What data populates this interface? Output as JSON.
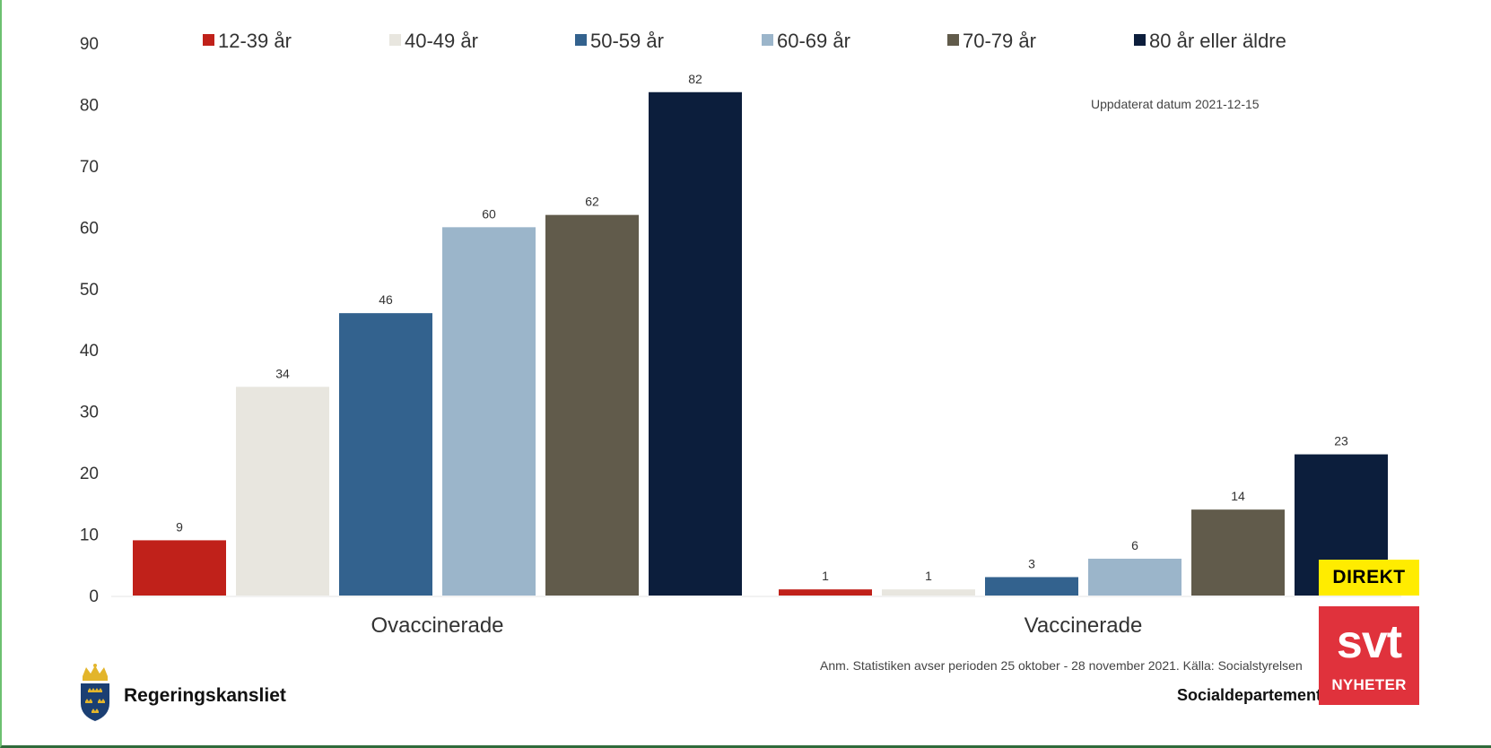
{
  "chart_data": {
    "type": "bar",
    "categories": [
      "Ovaccinerade",
      "Vaccinerade"
    ],
    "series": [
      {
        "name": "12-39 år",
        "color": "#c0211a",
        "values": [
          9,
          1
        ]
      },
      {
        "name": "40-49 år",
        "color": "#e8e6df",
        "values": [
          34,
          1
        ]
      },
      {
        "name": "50-59 år",
        "color": "#33628e",
        "values": [
          46,
          3
        ]
      },
      {
        "name": "60-69 år",
        "color": "#9bb5ca",
        "values": [
          60,
          6
        ]
      },
      {
        "name": "70-79 år",
        "color": "#615b4b",
        "values": [
          62,
          14
        ]
      },
      {
        "name": "80 år eller äldre",
        "color": "#0c1e3c",
        "values": [
          82,
          23
        ]
      }
    ],
    "ylim": [
      0,
      90
    ],
    "yticks": [
      0,
      10,
      20,
      30,
      40,
      50,
      60,
      70,
      80,
      90
    ],
    "title": "",
    "xlabel": "",
    "ylabel": "",
    "legend_position": "top",
    "grid": false
  },
  "notes": {
    "updated": "Uppdaterat datum 2021-12-15",
    "source": "Anm. Statistiken avser perioden 25 oktober - 28 november 2021. Källa: Socialstyrelsen"
  },
  "branding": {
    "left_logo_text": "Regeringskansliet",
    "right_department": "Socialdepartementet",
    "direkt_label": "DIREKT",
    "svt_word": "svt",
    "svt_sub": "NYHETER"
  }
}
